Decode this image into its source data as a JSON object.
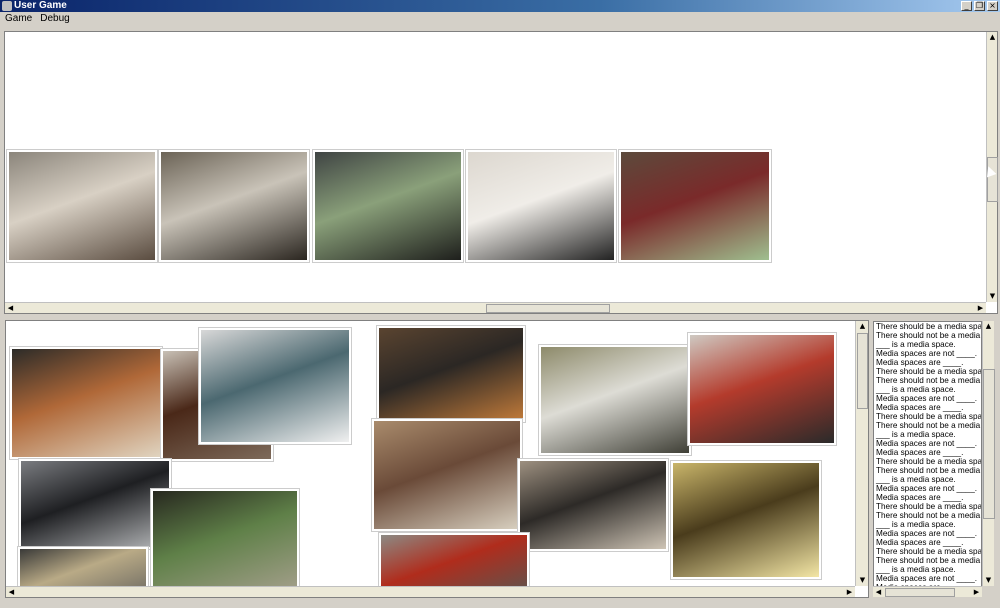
{
  "window": {
    "title": "User Game"
  },
  "menu": [
    "Game",
    "Debug"
  ],
  "top_gallery": [
    {
      "name": "lounge-photo",
      "colors": [
        "#8b857b",
        "#d8d0c4",
        "#5a4c40"
      ]
    },
    {
      "name": "study-table-photo",
      "colors": [
        "#6b6356",
        "#c9c3b8",
        "#2b2620"
      ]
    },
    {
      "name": "meeting-room-photo",
      "colors": [
        "#3f4443",
        "#8aa07a",
        "#1e1f1c"
      ]
    },
    {
      "name": "power-outlet-photo",
      "colors": [
        "#dcd7cf",
        "#f0ede8",
        "#222222"
      ]
    },
    {
      "name": "red-rug-lounge-photo",
      "colors": [
        "#5c4a3c",
        "#7a2a2a",
        "#9fbf8f"
      ]
    }
  ],
  "bottom_collage": [
    {
      "name": "orange-chairs-photo",
      "colors": [
        "#2c2b28",
        "#b06838",
        "#e0d4c0"
      ]
    },
    {
      "name": "wooden-bowl-photo",
      "colors": [
        "#c8c0b5",
        "#4a2818",
        "#7d6a5a"
      ]
    },
    {
      "name": "seating-area-photo",
      "colors": [
        "#d8d8d8",
        "#4b6870",
        "#f0f0f0"
      ]
    },
    {
      "name": "man-at-desk-photo",
      "colors": [
        "#5a4430",
        "#2b2724",
        "#c07a3a"
      ]
    },
    {
      "name": "whiteboard-room-photo",
      "colors": [
        "#8d8a6a",
        "#dddcd5",
        "#3f3f36"
      ]
    },
    {
      "name": "water-bottle-table-photo",
      "colors": [
        "#cfc9c2",
        "#b43b2c",
        "#2a2a2a"
      ]
    },
    {
      "name": "computer-lab-photo",
      "colors": [
        "#7a7c80",
        "#1e1f22",
        "#b6b8ba"
      ]
    },
    {
      "name": "dark-lounge-photo",
      "colors": [
        "#27281f",
        "#5f8048",
        "#a8a18f"
      ]
    },
    {
      "name": "mural-lounge-photo",
      "colors": [
        "#a98b6c",
        "#6a4a38",
        "#d8d0c0"
      ]
    },
    {
      "name": "student-floor-photo",
      "colors": [
        "#9d9080",
        "#2d2a27",
        "#cec4b5"
      ]
    },
    {
      "name": "ceiling-lights-photo",
      "colors": [
        "#c9b56a",
        "#4a3c1c",
        "#f3e6a5"
      ]
    },
    {
      "name": "stone-wall-photo",
      "colors": [
        "#8c8a84",
        "#b02c1c",
        "#5a5650"
      ]
    },
    {
      "name": "bottom-strip-photo",
      "colors": [
        "#3a3a38",
        "#b9aa86",
        "#6d6a62"
      ]
    }
  ],
  "text_list": [
    "There should be a media space",
    "There should not be a media space",
    "___ is a media space.",
    "Media spaces are not ____.",
    "Media spaces are ____.",
    "There should be a media space",
    "There should not be a media space",
    "___ is a media space.",
    "Media spaces are not ____.",
    "Media spaces are ____.",
    "There should be a media space",
    "There should not be a media space",
    "___ is a media space.",
    "Media spaces are not ____.",
    "Media spaces are ____.",
    "There should be a media space",
    "There should not be a media space",
    "___ is a media space.",
    "Media spaces are not ____.",
    "Media spaces are ____.",
    "There should be a media space",
    "There should not be a media space",
    "___ is a media space.",
    "Media spaces are not ____.",
    "Media spaces are ____.",
    "There should be a media space",
    "There should not be a media space",
    "___ is a media space.",
    "Media spaces are not ____.",
    "Media spaces are ____."
  ]
}
